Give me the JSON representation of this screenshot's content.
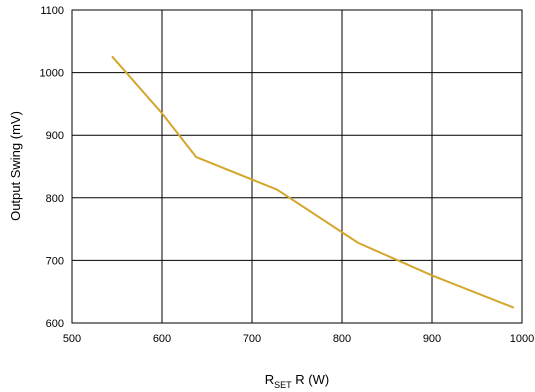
{
  "chart_data": {
    "type": "line",
    "title": "",
    "xlabel": {
      "main": "R",
      "subscript": "SET",
      "rest": " R (W)"
    },
    "ylabel": "Output Swing (mV)",
    "xlim": [
      500,
      1000
    ],
    "ylim": [
      600,
      1100
    ],
    "x_ticks": [
      500,
      600,
      700,
      800,
      900,
      1000
    ],
    "y_ticks": [
      600,
      700,
      800,
      900,
      1000,
      1100
    ],
    "grid": true,
    "series": [
      {
        "color": "#d4a72c",
        "x": [
          545,
          600,
          638,
          728,
          818,
          900,
          990
        ],
        "y": [
          1025,
          935,
          865,
          813,
          728,
          676,
          625
        ]
      }
    ]
  }
}
